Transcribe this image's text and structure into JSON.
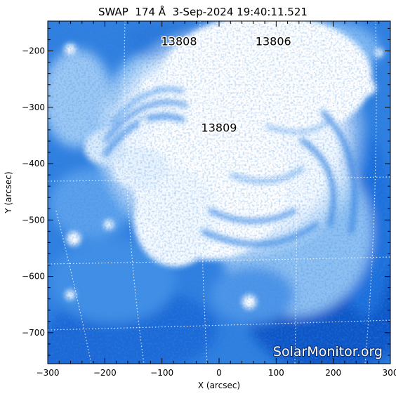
{
  "title": {
    "instrument": "SWAP",
    "wavelength": "174 Å",
    "date": "3-Sep-2024",
    "time": "19:40:11.521",
    "full": "SWAP  174 Å  3-Sep-2024 19:40:11.521"
  },
  "axes": {
    "x_label": "X (arcsec)",
    "y_label": "Y (arcsec)",
    "x_range": [
      -300,
      300
    ],
    "y_range": [
      -755,
      -147
    ],
    "x_ticks": [
      "−300",
      "−200",
      "−100",
      "0",
      "100",
      "200",
      "300"
    ],
    "y_ticks": [
      "−200",
      "−300",
      "−400",
      "−500",
      "−600",
      "−700"
    ]
  },
  "regions": [
    {
      "label": "13808",
      "x": -70,
      "y": -190
    },
    {
      "label": "13806",
      "x": 95,
      "y": -190
    },
    {
      "label": "13809",
      "x": 0,
      "y": -343
    }
  ],
  "watermark": "SolarMonitor.org",
  "colors": {
    "dark_blue": "#0b5fd4",
    "mid_blue": "#5aa0ec",
    "light_blue": "#bcdaf8",
    "white": "#ffffff",
    "grid": "#ffffff"
  }
}
